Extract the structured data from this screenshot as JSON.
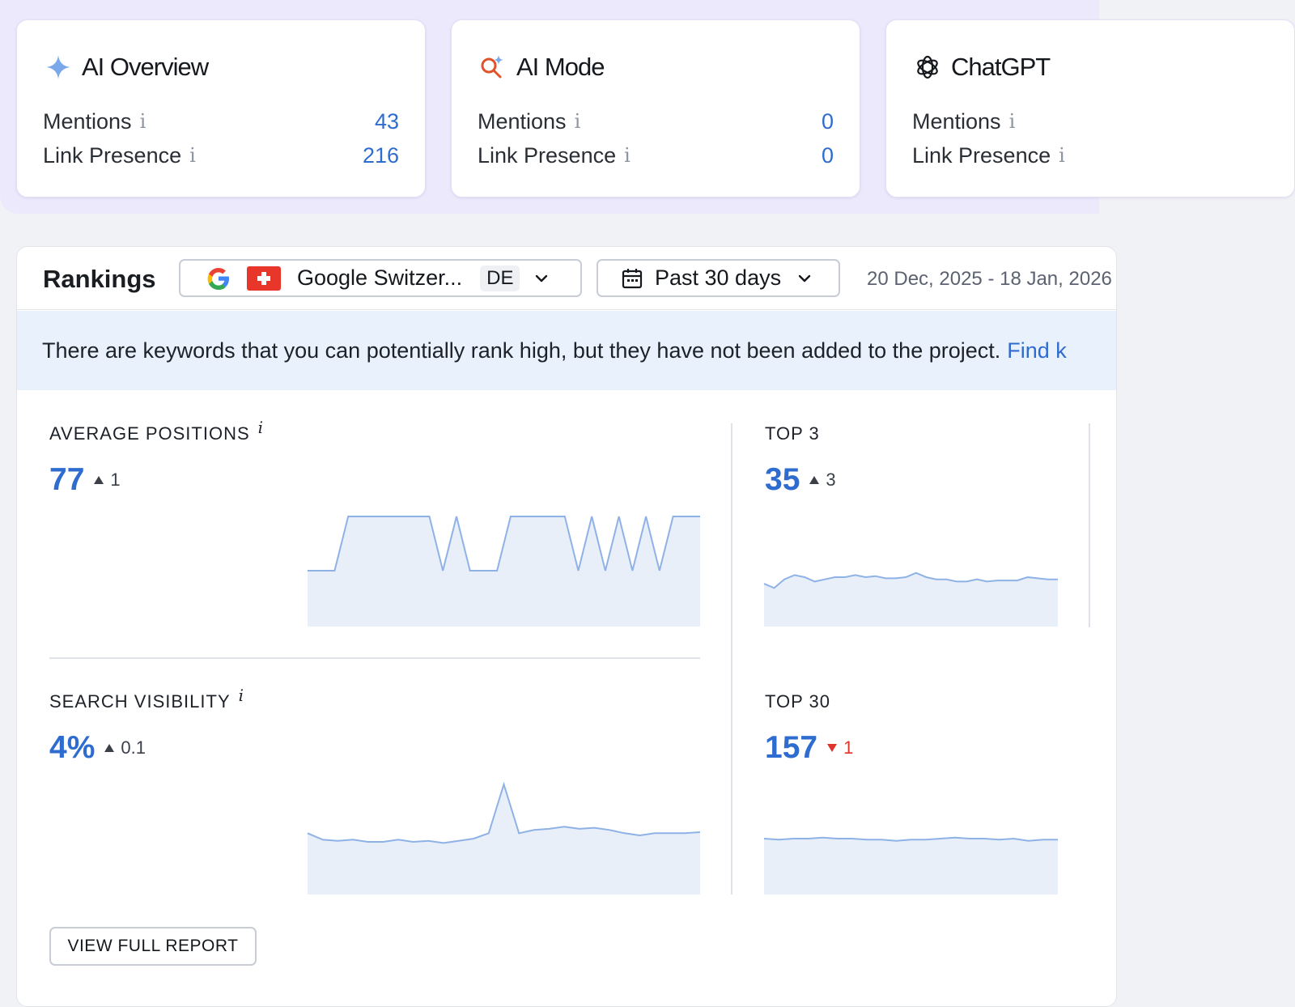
{
  "ai_cards": [
    {
      "title": "AI Overview",
      "icon": "sparkle-icon",
      "rows": [
        {
          "label": "Mentions",
          "info": "i",
          "value": "43"
        },
        {
          "label": "Link Presence",
          "info": "i",
          "value": "216"
        }
      ]
    },
    {
      "title": "AI Mode",
      "icon": "ai-search-icon",
      "rows": [
        {
          "label": "Mentions",
          "info": "i",
          "value": "0"
        },
        {
          "label": "Link Presence",
          "info": "i",
          "value": "0"
        }
      ]
    },
    {
      "title": "ChatGPT",
      "icon": "openai-icon",
      "rows": [
        {
          "label": "Mentions",
          "info": "i",
          "value": ""
        },
        {
          "label": "Link Presence",
          "info": "i",
          "value": ""
        }
      ]
    }
  ],
  "rankings": {
    "title": "Rankings",
    "engine_label": "Google Switzer...",
    "language": "DE",
    "period_label": "Past 30 days",
    "date_range": "20 Dec, 2025 - 18 Jan, 2026",
    "banner_text": "There are keywords that you can potentially rank high, but they have not been added to the project.",
    "banner_link": "Find k",
    "view_report": "VIEW FULL REPORT",
    "colors": {
      "accent": "#2f6ccf",
      "up": "#3a3f48",
      "down": "#e0342a",
      "area": "#e8eff9",
      "line": "#8fb2e6"
    }
  },
  "metrics": {
    "avg_positions": {
      "label": "AVERAGE POSITIONS",
      "info": "i",
      "value": "77",
      "delta": "1",
      "direction": "up"
    },
    "top3": {
      "label": "TOP 3",
      "value": "35",
      "delta": "3",
      "direction": "up"
    },
    "search_visibility": {
      "label": "SEARCH VISIBILITY",
      "info": "i",
      "value": "4%",
      "delta": "0.1",
      "direction": "up"
    },
    "top30": {
      "label": "TOP 30",
      "value": "157",
      "delta": "1",
      "direction": "down"
    }
  },
  "sparklines": {
    "avg_positions": [
      0.5,
      0.5,
      0.5,
      1,
      1,
      1,
      1,
      1,
      1,
      1,
      0.5,
      1,
      0.5,
      0.5,
      0.5,
      1,
      1,
      1,
      1,
      1,
      0.5,
      1,
      0.5,
      1,
      0.5,
      1,
      0.5,
      1,
      1,
      1
    ],
    "top3": [
      0.38,
      0.34,
      0.42,
      0.46,
      0.44,
      0.4,
      0.42,
      0.44,
      0.44,
      0.46,
      0.44,
      0.45,
      0.43,
      0.43,
      0.44,
      0.48,
      0.44,
      0.42,
      0.42,
      0.4,
      0.4,
      0.42,
      0.4,
      0.41,
      0.41,
      0.41,
      0.44,
      0.43,
      0.42,
      0.42
    ],
    "search_visibility": [
      0.55,
      0.49,
      0.48,
      0.49,
      0.47,
      0.47,
      0.49,
      0.47,
      0.48,
      0.46,
      0.48,
      0.5,
      0.55,
      1.0,
      0.55,
      0.58,
      0.59,
      0.61,
      0.59,
      0.6,
      0.58,
      0.55,
      0.53,
      0.55,
      0.55,
      0.55,
      0.56
    ],
    "top30": [
      0.5,
      0.49,
      0.5,
      0.5,
      0.51,
      0.5,
      0.5,
      0.49,
      0.49,
      0.48,
      0.49,
      0.49,
      0.5,
      0.51,
      0.5,
      0.5,
      0.49,
      0.5,
      0.48,
      0.49,
      0.49
    ]
  }
}
